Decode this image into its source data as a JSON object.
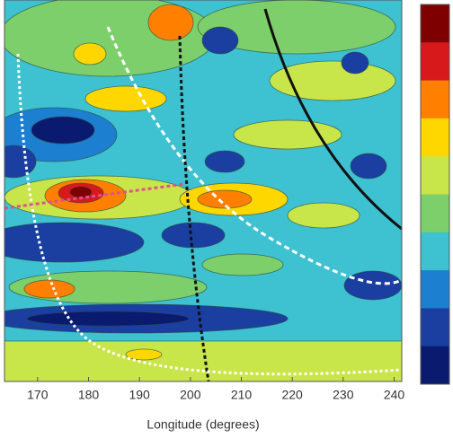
{
  "chart_data": {
    "type": "contour",
    "x_label": "Longitude (degrees)",
    "xlim": [
      163.5,
      241.5
    ],
    "xticks": [
      170,
      180,
      190,
      200,
      210,
      220,
      230,
      240
    ],
    "colormap": [
      "#7f0000",
      "#d7191c",
      "#ff7f00",
      "#ffd700",
      "#c8e64a",
      "#7ccf6a",
      "#3ec1d0",
      "#1c7fd0",
      "#1a3fa0",
      "#0a1a6e"
    ]
  }
}
